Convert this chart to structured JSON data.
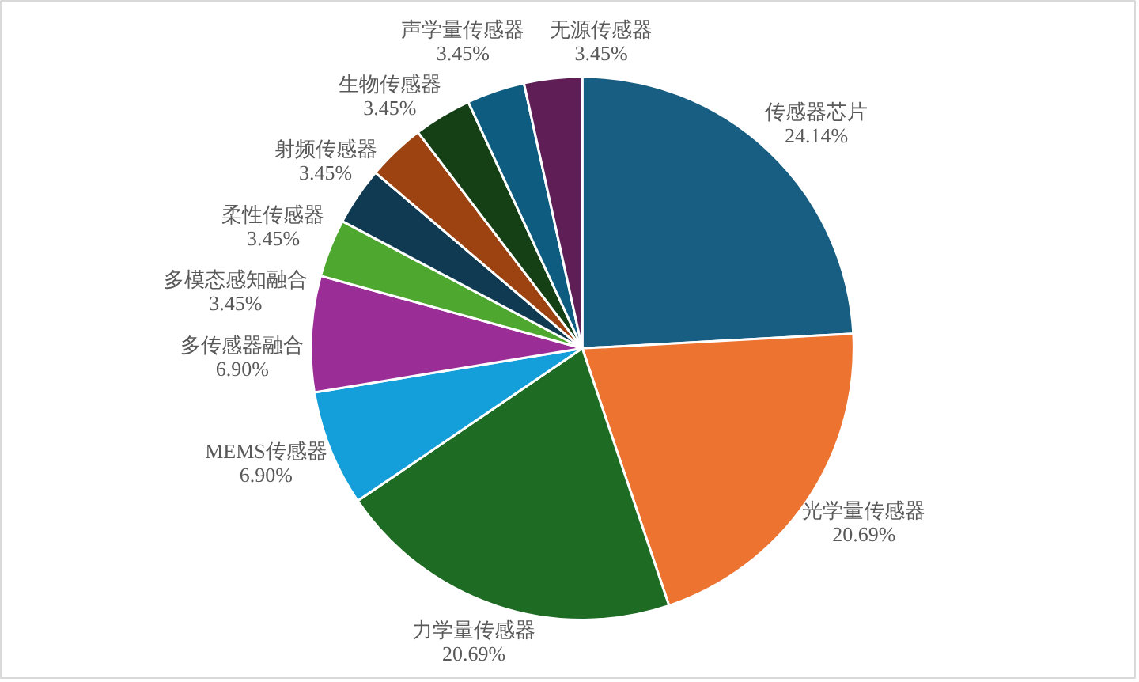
{
  "chart_data": {
    "type": "pie",
    "categories": [
      "传感器芯片",
      "光学量传感器",
      "力学量传感器",
      "MEMS传感器",
      "多传感器融合",
      "多模态感知融合",
      "柔性传感器",
      "射频传感器",
      "生物传感器",
      "声学量传感器",
      "无源传感器"
    ],
    "values": [
      24.14,
      20.69,
      20.69,
      6.9,
      6.9,
      3.45,
      3.45,
      3.45,
      3.45,
      3.45,
      3.45
    ],
    "value_labels": [
      "24.14%",
      "20.69%",
      "20.69%",
      "6.90%",
      "6.90%",
      "3.45%",
      "3.45%",
      "3.45%",
      "3.45%",
      "3.45%",
      "3.45%"
    ],
    "colors": [
      "#175e82",
      "#ec7330",
      "#1e6b24",
      "#159fda",
      "#9b2d96",
      "#4ea72e",
      "#0f3a52",
      "#9c4311",
      "#154016",
      "#0e5d80",
      "#5f1e56"
    ]
  }
}
